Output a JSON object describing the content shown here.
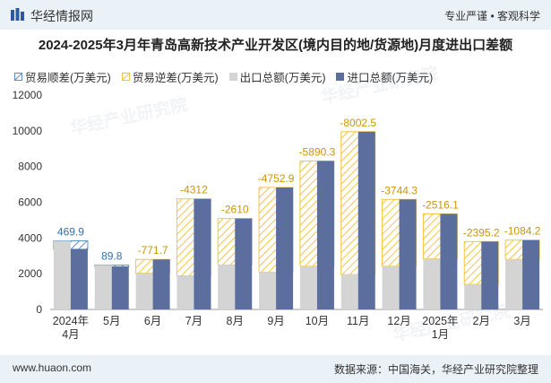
{
  "header": {
    "brand": "华经情报网",
    "tagline": "专业严谨 • 客观科学"
  },
  "watermarks": [
    "华经产业研究院",
    "华经产业研究院",
    "华经产业研究院"
  ],
  "footer": {
    "website": "www.huaon.com",
    "source": "数据来源：中国海关，华经产业研究院整理"
  },
  "colors": {
    "surplus": "#5b8fc9",
    "deficit": "#f5c542",
    "export": "#d4d4d4",
    "import": "#5b6e9e"
  },
  "chart_data": {
    "type": "bar",
    "title": "2024-2025年3月年青岛高新技术产业开发区(境内目的地/货源地)月度进出口差额",
    "categories": [
      "2024年\n4月",
      "5月",
      "6月",
      "7月",
      "8月",
      "9月",
      "10月",
      "11月",
      "12月",
      "2025年\n1月",
      "2月",
      "3月"
    ],
    "ylim": [
      0,
      12000
    ],
    "yticks": [
      0,
      2000,
      4000,
      6000,
      8000,
      10000,
      12000
    ],
    "legend": [
      "贸易顺差(万美元)",
      "贸易逆差(万美元)",
      "出口总额(万美元)",
      "进口总额(万美元)"
    ],
    "series": [
      {
        "name": "出口总额(万美元)",
        "values": [
          3840,
          2480,
          2030,
          1880,
          2480,
          2080,
          2420,
          1950,
          2420,
          2830,
          1400,
          2800
        ]
      },
      {
        "name": "进口总额(万美元)",
        "values": [
          3370,
          2390,
          2800,
          6190,
          5090,
          6830,
          8310,
          9950,
          6160,
          5350,
          3800,
          3880
        ]
      }
    ],
    "balance": [
      469.9,
      89.8,
      -771.7,
      -4312,
      -2610,
      -4752.9,
      -5890.3,
      -8002.5,
      -3744.3,
      -2516.1,
      -2395.2,
      -1084.2
    ],
    "balance_labels": [
      "469.9",
      "89.8",
      "-771.7",
      "-4312",
      "-2610",
      "-4752.9",
      "-5890.3",
      "-8002.5",
      "-3744.3",
      "-2516.1",
      "-2395.2",
      "-1084.2"
    ],
    "grid": false,
    "legend_position": "top-left"
  }
}
